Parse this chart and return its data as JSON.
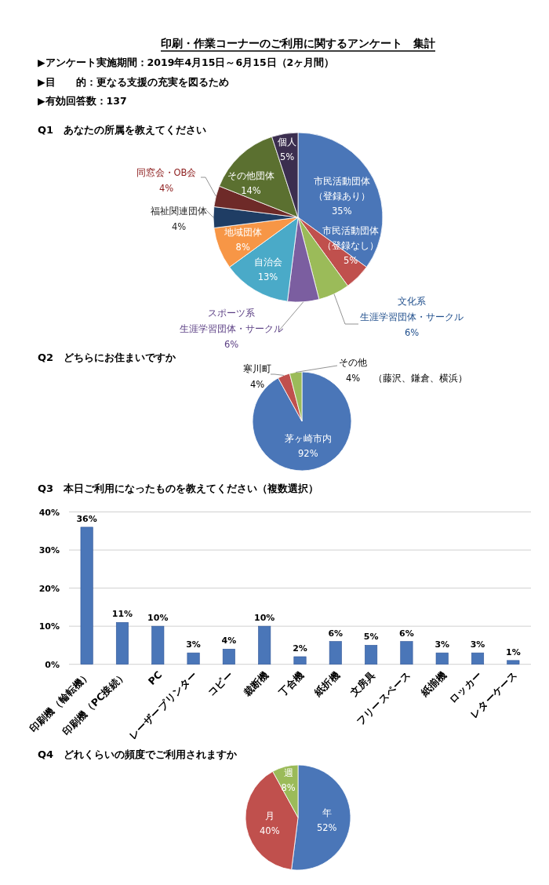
{
  "chart_data": [
    {
      "type": "other",
      "title": "印刷・作業コーナーのご利用に関するアンケート　集計",
      "annotations": [
        "▶アンケート実施期間：2019年4月15日～6月15日（2ヶ月間）",
        "▶目　　的：更なる支援の充実を図るため",
        "▶有効回答数：137"
      ]
    },
    {
      "type": "pie",
      "title": "Q1　あなたの所属を教えてください",
      "categories": [
        "市民活動団体（登録あり）",
        "市民活動団体（登録なし）",
        "文化系生涯学習団体・サークル",
        "スポーツ系生涯学習団体・サークル",
        "自治会",
        "地域団体",
        "福祉関連団体",
        "同窓会・OB会",
        "その他団体",
        "個人"
      ],
      "values": [
        35,
        5,
        6,
        6,
        13,
        8,
        4,
        4,
        14,
        5
      ],
      "value_labels": [
        "35%",
        "5%",
        "6%",
        "6%",
        "13%",
        "8%",
        "4%",
        "4%",
        "14%",
        "5%"
      ],
      "colors": [
        "#4a76b8",
        "#c0504d",
        "#9bbb59",
        "#7b5ea0",
        "#4aaac8",
        "#f79646",
        "#1f3d64",
        "#6e2a28",
        "#5b7030",
        "#3b2e4f"
      ]
    },
    {
      "type": "pie",
      "title": "Q2　どちらにお住まいですか",
      "categories": [
        "茅ヶ崎市内",
        "寒川町",
        "その他"
      ],
      "values": [
        92,
        4,
        4
      ],
      "value_labels": [
        "92%",
        "4%",
        "4%"
      ],
      "colors": [
        "#4a76b8",
        "#c0504d",
        "#9bbb59"
      ],
      "annotations": [
        "（藤沢、鎌倉、横浜）"
      ]
    },
    {
      "type": "bar",
      "title": "Q3　本日ご利用になったものを教えてください（複数選択）",
      "categories": [
        "印刷機（輪転機）",
        "印刷機（PC接続）",
        "PC",
        "レーザープリンター",
        "コピー",
        "裁断機",
        "丁合機",
        "紙折機",
        "文房具",
        "フリースペース",
        "紙揃機",
        "ロッカー",
        "レターケース"
      ],
      "values": [
        36,
        11,
        10,
        3,
        4,
        10,
        2,
        6,
        5,
        6,
        3,
        3,
        1
      ],
      "value_labels": [
        "36%",
        "11%",
        "10%",
        "3%",
        "4%",
        "10%",
        "2%",
        "6%",
        "5%",
        "6%",
        "3%",
        "3%",
        "1%"
      ],
      "color": "#4a76b8",
      "ylim": [
        0,
        40
      ],
      "yticks": [
        {
          "value": 0,
          "label": "0%"
        },
        {
          "value": 10,
          "label": "10%"
        },
        {
          "value": 20,
          "label": "20%"
        },
        {
          "value": 30,
          "label": "30%"
        },
        {
          "value": 40,
          "label": "40%"
        }
      ],
      "grid": "y"
    },
    {
      "type": "pie",
      "title": "Q4　どれくらいの頻度でご利用されますか",
      "categories": [
        "年",
        "月",
        "週"
      ],
      "values": [
        52,
        40,
        8
      ],
      "value_labels": [
        "52%",
        "40%",
        "8%"
      ],
      "colors": [
        "#4a76b8",
        "#c0504d",
        "#9bbb59"
      ]
    }
  ]
}
